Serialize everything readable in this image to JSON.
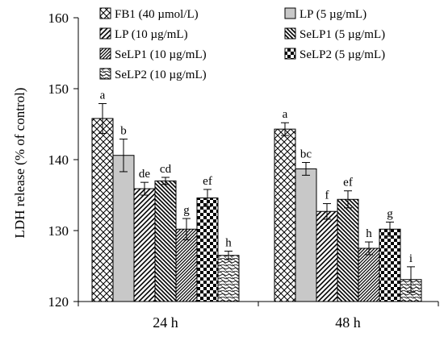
{
  "chart_data": {
    "type": "bar",
    "ylabel": "LDH release (% of control)",
    "ylim": [
      120,
      160
    ],
    "yticks": [
      "120",
      "130",
      "140",
      "150",
      "160"
    ],
    "categories": [
      "24 h",
      "48 h"
    ],
    "legend_position": "top",
    "series": [
      {
        "name": "FB1 (40 µmol/L)",
        "pattern": "crosshatch",
        "values": [
          145.8,
          144.3
        ],
        "errors": [
          2.1,
          0.9
        ],
        "letters": [
          "a",
          "a"
        ]
      },
      {
        "name": "LP (5 µg/mL)",
        "pattern": "gray",
        "values": [
          140.6,
          138.7
        ],
        "errors": [
          2.3,
          0.9
        ],
        "letters": [
          "b",
          "bc"
        ]
      },
      {
        "name": "LP (10 µg/mL)",
        "pattern": "diag-up",
        "values": [
          135.9,
          132.7
        ],
        "errors": [
          0.9,
          1.1
        ],
        "letters": [
          "de",
          "f"
        ]
      },
      {
        "name": "SeLP1 (5 µg/mL)",
        "pattern": "diag-down",
        "values": [
          137.0,
          134.4
        ],
        "errors": [
          0.5,
          1.2
        ],
        "letters": [
          "cd",
          "ef"
        ]
      },
      {
        "name": "SeLP1 (10 µg/mL)",
        "pattern": "diag-dense",
        "values": [
          130.2,
          127.5
        ],
        "errors": [
          1.5,
          0.9
        ],
        "letters": [
          "g",
          "h"
        ]
      },
      {
        "name": "SeLP2 (5 µg/mL)",
        "pattern": "checker",
        "values": [
          134.6,
          130.2
        ],
        "errors": [
          1.2,
          1.0
        ],
        "letters": [
          "ef",
          "g"
        ]
      },
      {
        "name": "SeLP2 (10 µg/mL)",
        "pattern": "zigzag",
        "values": [
          126.5,
          123.1
        ],
        "errors": [
          0.6,
          1.8
        ],
        "letters": [
          "h",
          "i"
        ]
      }
    ]
  }
}
